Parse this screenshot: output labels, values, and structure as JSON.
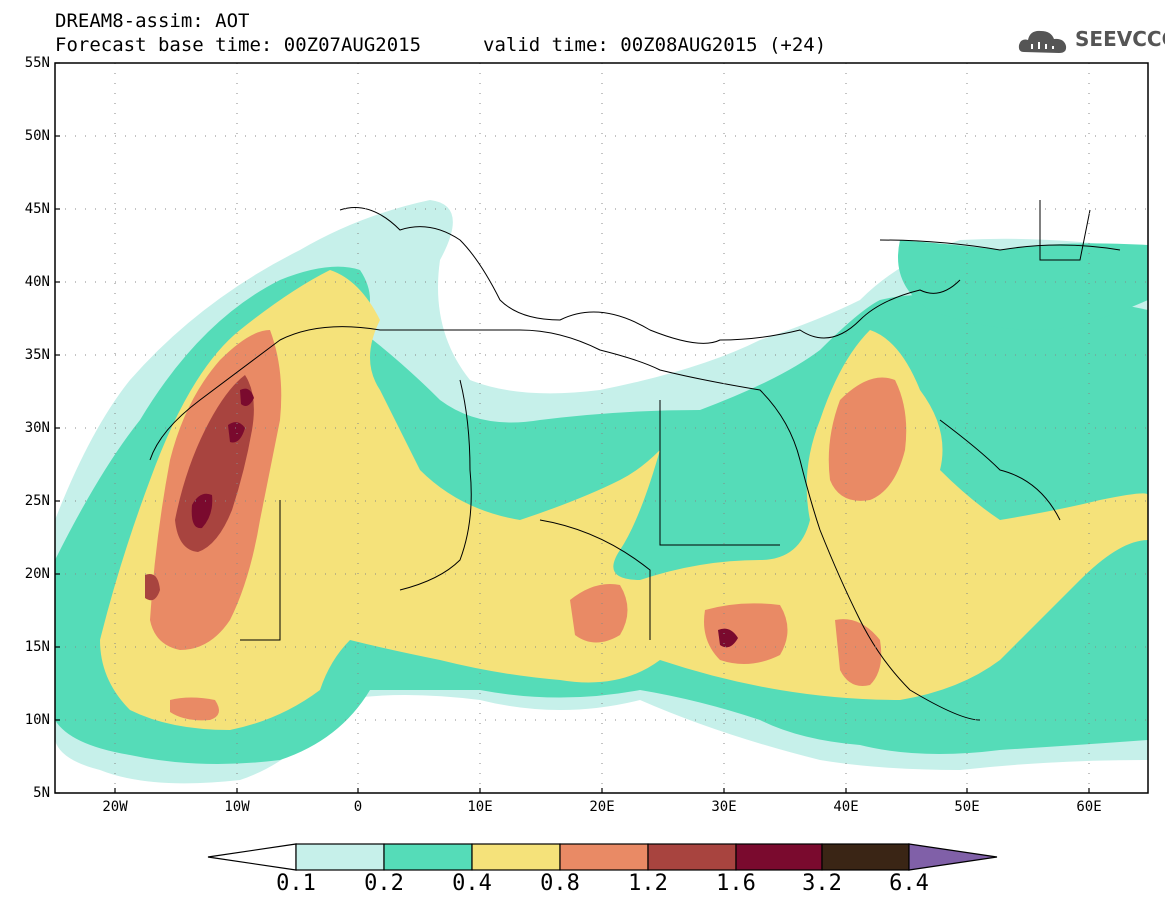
{
  "header": {
    "title_line1": "DREAM8-assim: AOT",
    "title_line2": "Forecast base time: 00Z07AUG2015",
    "valid_time": "valid time: 00Z08AUG2015 (+24)",
    "logo_text": "SEEVCCC",
    "logo_icon": "cloud-icon"
  },
  "axes": {
    "y_ticks": [
      "55N",
      "50N",
      "45N",
      "40N",
      "35N",
      "30N",
      "25N",
      "20N",
      "15N",
      "10N",
      "5N"
    ],
    "x_ticks": [
      "20W",
      "10W",
      "0",
      "10E",
      "20E",
      "30E",
      "40E",
      "50E",
      "60E"
    ]
  },
  "colorbar": {
    "labels": [
      "0.1",
      "0.2",
      "0.4",
      "0.8",
      "1.2",
      "1.6",
      "3.2",
      "6.4"
    ],
    "colors": [
      "#ffffff",
      "#c6f0ea",
      "#55dcb8",
      "#f5e27a",
      "#e98a65",
      "#a8443f",
      "#7a0a2e",
      "#3a2515",
      "#8060a8"
    ]
  }
}
